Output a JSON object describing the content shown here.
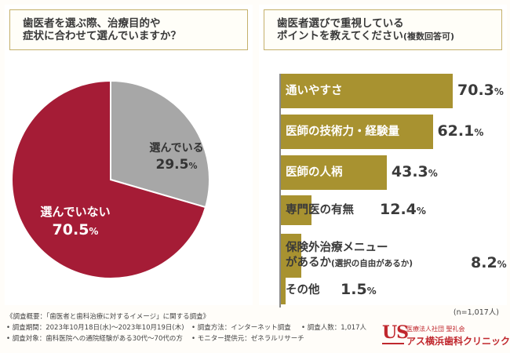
{
  "left_panel": {
    "question_line1": "歯医者を選ぶ際、治療目的や",
    "question_line2": "症状に合わせて選んでいますか？"
  },
  "right_panel": {
    "question_line1": "歯医者選びで重視している",
    "question_line2_main": "ポイントを教えてください",
    "question_line2_sub": "(複数回答可)"
  },
  "chart_data": [
    {
      "type": "pie",
      "title": "歯医者を選ぶ際、治療目的や症状に合わせて選んでいますか？",
      "slices": [
        {
          "label": "選んでいる",
          "value": 29.5,
          "display": "29.5",
          "color": "#a7a7a7"
        },
        {
          "label": "選んでいない",
          "value": 70.5,
          "display": "70.5",
          "color": "#a51c36"
        }
      ],
      "unit": "%"
    },
    {
      "type": "bar",
      "orientation": "horizontal",
      "title": "歯医者選びで重視しているポイントを教えてください(複数回答可)",
      "categories": [
        "通いやすさ",
        "医師の技術力・経験量",
        "医師の人柄",
        "専門医の有無",
        "保険外治療メニューがあるか(選択の自由があるか)",
        "その他"
      ],
      "category_lines": [
        [
          "通いやすさ"
        ],
        [
          "医師の技術力・経験量"
        ],
        [
          "医師の人柄"
        ],
        [
          "専門医の有無"
        ],
        [
          "保険外治療メニュー",
          "があるか"
        ],
        [
          "その他"
        ]
      ],
      "category_suffix": [
        "",
        "",
        "",
        "",
        "(選択の自由があるか)",
        ""
      ],
      "values": [
        70.3,
        62.1,
        43.3,
        12.4,
        8.2,
        1.5
      ],
      "display": [
        "70.3",
        "62.1",
        "43.3",
        "12.4",
        "8.2",
        "1.5"
      ],
      "unit": "%",
      "xlim": [
        0,
        100
      ],
      "bar_color": "#a89230",
      "note": "(n=1,017人)"
    }
  ],
  "footer": {
    "overview": "《調査概要：「歯医者と歯科治療に対するイメージ」に関する調査》",
    "period": "• 調査期間：2023年10月18日(水)～2023年10月19日(木)",
    "method": "• 調査方法：インターネット調査",
    "count": "• 調査人数：1,017人",
    "target": "• 調査対象：歯科医院への通院経験がある30代～70代の方",
    "provider": "• モニター提供元：ゼネラルリサーチ"
  },
  "logo": {
    "mark": "US",
    "corp": "医療法人社団 聖礼会",
    "clinic": "アス横浜歯科クリニック"
  }
}
